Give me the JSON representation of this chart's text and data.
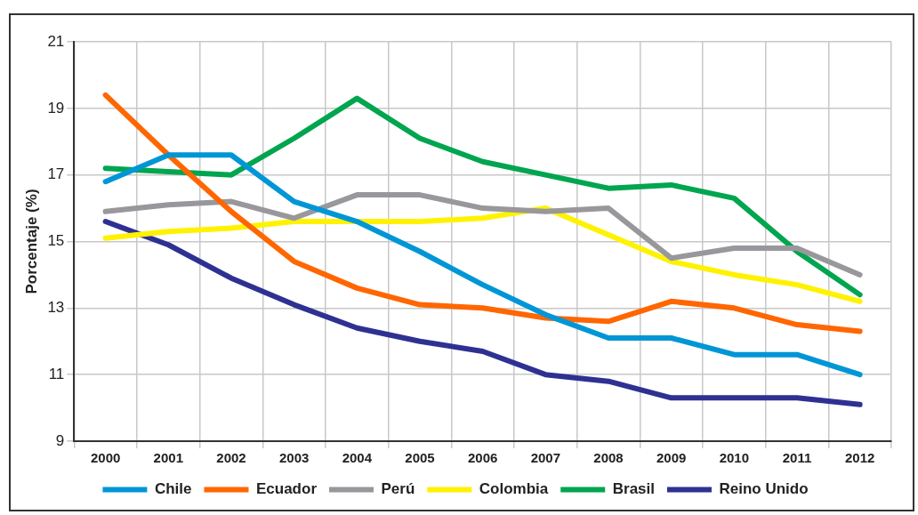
{
  "chart_data": {
    "type": "line",
    "ylabel": "Porcentaje (%)",
    "categories": [
      "2000",
      "2001",
      "2002",
      "2003",
      "2004",
      "2005",
      "2006",
      "2007",
      "2008",
      "2009",
      "2010",
      "2011",
      "2012"
    ],
    "series": [
      {
        "name": "Chile",
        "color": "#0096d6",
        "values": [
          16.8,
          17.6,
          17.6,
          16.2,
          15.6,
          14.7,
          13.7,
          12.8,
          12.1,
          12.1,
          11.6,
          11.6,
          11.0
        ]
      },
      {
        "name": "Ecuador",
        "color": "#ff6600",
        "values": [
          19.4,
          17.6,
          15.9,
          14.4,
          13.6,
          13.1,
          13.0,
          12.7,
          12.6,
          13.2,
          13.0,
          12.5,
          12.3
        ]
      },
      {
        "name": "Perú",
        "color": "#98989c",
        "values": [
          15.9,
          16.1,
          16.2,
          15.7,
          16.4,
          16.4,
          16.0,
          15.9,
          16.0,
          14.5,
          14.8,
          14.8,
          14.0
        ]
      },
      {
        "name": "Colombia",
        "color": "#fff200",
        "values": [
          15.1,
          15.3,
          15.4,
          15.6,
          15.6,
          15.6,
          15.7,
          16.0,
          15.2,
          14.4,
          14.0,
          13.7,
          13.2
        ]
      },
      {
        "name": "Brasil",
        "color": "#00a550",
        "values": [
          17.2,
          17.1,
          17.0,
          18.1,
          19.3,
          18.1,
          17.4,
          17.0,
          16.6,
          16.7,
          16.3,
          14.7,
          13.4
        ]
      },
      {
        "name": "Reino Unido",
        "color": "#2e3192",
        "values": [
          15.6,
          14.9,
          13.9,
          13.1,
          12.4,
          12.0,
          11.7,
          11.0,
          10.8,
          10.3,
          10.3,
          10.3,
          10.1
        ]
      }
    ],
    "ylim": [
      9,
      21
    ],
    "yticks": [
      9,
      11,
      13,
      15,
      17,
      19,
      21
    ],
    "grid": true,
    "legend": "bottom",
    "marker": "none",
    "line_style": "solid"
  }
}
